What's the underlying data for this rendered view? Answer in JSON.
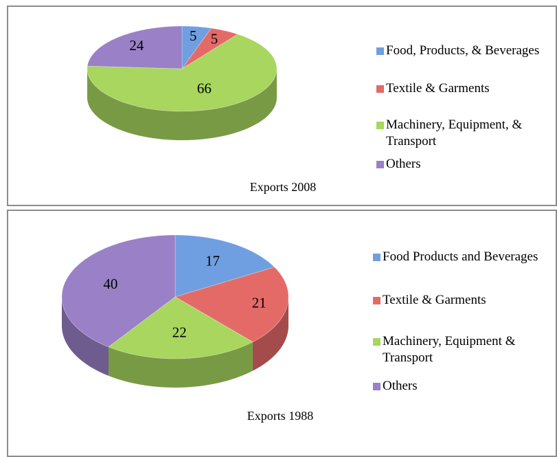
{
  "chart_data": [
    {
      "type": "pie",
      "title": "Exports 2008",
      "categories": [
        "Food, Products, & Beverages",
        "Textile & Garments",
        "Machinery, Equipment, & Transport",
        "Others"
      ],
      "values": [
        5,
        5,
        66,
        24
      ],
      "colors": [
        "#6f9fe0",
        "#e46a68",
        "#a8d65e",
        "#9a80c6"
      ]
    },
    {
      "type": "pie",
      "title": "Exports 1988",
      "categories": [
        "Food Products and Beverages",
        "Textile & Garments",
        "Machinery, Equipment & Transport",
        "Others"
      ],
      "values": [
        17,
        21,
        22,
        40
      ],
      "colors": [
        "#6f9fe0",
        "#e46a68",
        "#a8d65e",
        "#9a80c6"
      ]
    }
  ]
}
